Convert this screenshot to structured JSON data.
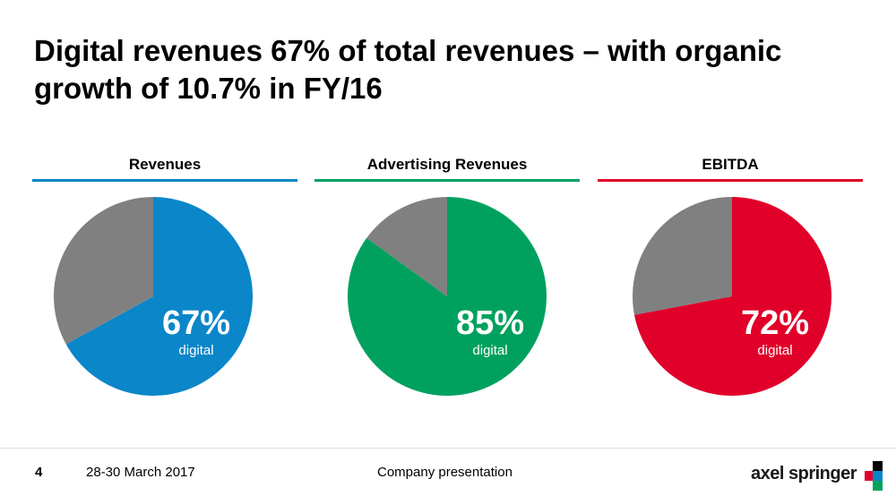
{
  "slide": {
    "title": "Digital revenues 67% of total revenues – with organic growth of 10.7% in FY/16"
  },
  "chart_data": [
    {
      "type": "pie",
      "title": "Revenues",
      "categories": [
        "digital",
        "other"
      ],
      "values": [
        67,
        33
      ],
      "colors": [
        "#0a86c9",
        "#808080"
      ],
      "label": "67%",
      "sublabel": "digital",
      "accent": "#0a86c9"
    },
    {
      "type": "pie",
      "title": "Advertising Revenues",
      "categories": [
        "digital",
        "other"
      ],
      "values": [
        85,
        15
      ],
      "colors": [
        "#00a15f",
        "#808080"
      ],
      "label": "85%",
      "sublabel": "digital",
      "accent": "#00a15f"
    },
    {
      "type": "pie",
      "title": "EBITDA",
      "categories": [
        "digital",
        "other"
      ],
      "values": [
        72,
        28
      ],
      "colors": [
        "#e0002a",
        "#808080"
      ],
      "label": "72%",
      "sublabel": "digital",
      "accent": "#e0002a"
    }
  ],
  "footer": {
    "page": "4",
    "date": "28-30 March 2017",
    "center": "Company presentation",
    "logo": "axel springer"
  },
  "logo_colors": [
    "#000000",
    "#e0002a",
    "#0a86c9",
    "#00a15f"
  ]
}
